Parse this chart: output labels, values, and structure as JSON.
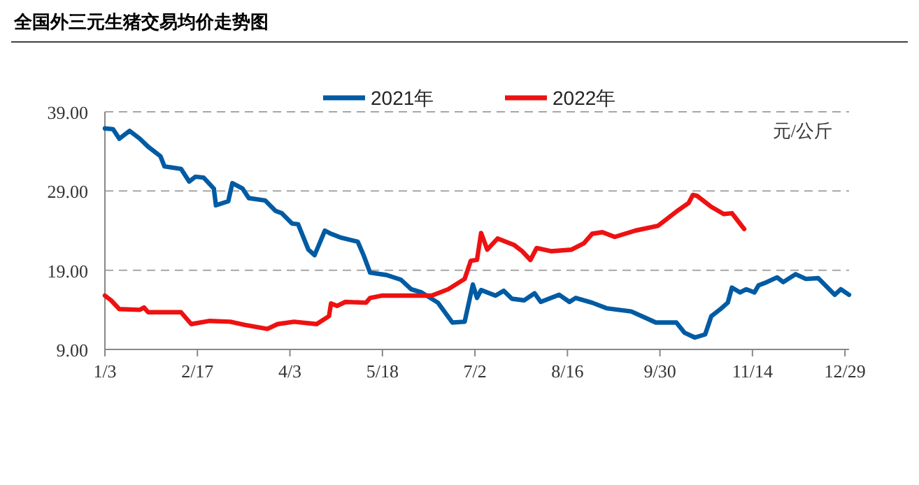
{
  "chart_data": {
    "type": "line",
    "title": "全国外三元生猪交易均价走势图",
    "annotations": [
      "元/公斤"
    ],
    "xlim": [
      "--01-03",
      "--12-31"
    ],
    "xticks": [
      {
        "value": "--01-03",
        "label": "1/3"
      },
      {
        "value": "--02-17",
        "label": "2/17"
      },
      {
        "value": "--04-03",
        "label": "4/3"
      },
      {
        "value": "--05-18",
        "label": "5/18"
      },
      {
        "value": "--07-02",
        "label": "7/2"
      },
      {
        "value": "--08-16",
        "label": "8/16"
      },
      {
        "value": "--09-30",
        "label": "9/30"
      },
      {
        "value": "--11-14",
        "label": "11/14"
      },
      {
        "value": "--12-29",
        "label": "12/29"
      }
    ],
    "ylim": [
      9,
      39
    ],
    "yticks": [
      {
        "value": 9,
        "label": "9.00"
      },
      {
        "value": 19,
        "label": "19.00"
      },
      {
        "value": 29,
        "label": "29.00"
      },
      {
        "value": 39,
        "label": "39.00"
      }
    ],
    "grid": "y",
    "legend": "top",
    "marker": "none",
    "line_style": "solid",
    "series": [
      {
        "name": "2021年",
        "color": "#005ba3",
        "x": [
          "--01-03",
          "--01-07",
          "--01-10",
          "--01-15",
          "--01-20",
          "--01-24",
          "--01-30",
          "--02-01",
          "--02-09",
          "--02-13",
          "--02-16",
          "--02-20",
          "--02-25",
          "--02-26",
          "--03-04",
          "--03-06",
          "--03-11",
          "--03-14",
          "--03-22",
          "--03-27",
          "--03-30",
          "--04-04",
          "--04-07",
          "--04-12",
          "--04-15",
          "--04-20",
          "--04-23",
          "--04-28",
          "--05-06",
          "--05-09",
          "--05-12",
          "--05-20",
          "--05-27",
          "--06-01",
          "--06-06",
          "--06-14",
          "--06-21",
          "--06-27",
          "--07-01",
          "--07-03",
          "--07-05",
          "--07-12",
          "--07-16",
          "--07-20",
          "--07-26",
          "--07-31",
          "--08-03",
          "--08-12",
          "--08-17",
          "--08-20",
          "--08-28",
          "--09-04",
          "--09-16",
          "--09-22",
          "--09-28",
          "--10-08",
          "--10-12",
          "--10-17",
          "--10-22",
          "--10-25",
          "--10-29",
          "--11-02",
          "--11-04",
          "--11-08",
          "--11-11",
          "--11-15",
          "--11-17",
          "--11-21",
          "--11-26",
          "--11-29",
          "--12-05",
          "--12-10",
          "--12-16",
          "--12-24",
          "--12-27",
          "--12-31"
        ],
        "values": [
          36.9,
          36.8,
          35.6,
          36.6,
          35.6,
          34.6,
          33.4,
          32.1,
          31.8,
          30.2,
          30.8,
          30.7,
          29.3,
          27.2,
          27.7,
          30.0,
          29.3,
          28.1,
          27.8,
          26.5,
          26.2,
          24.9,
          24.8,
          21.6,
          20.9,
          24.0,
          23.6,
          23.1,
          22.6,
          20.8,
          18.7,
          18.4,
          17.8,
          16.6,
          16.2,
          14.9,
          12.4,
          12.5,
          17.2,
          15.5,
          16.5,
          15.8,
          16.4,
          15.4,
          15.2,
          16.1,
          15.0,
          15.9,
          15.0,
          15.5,
          14.9,
          14.2,
          13.8,
          13.1,
          12.4,
          12.4,
          11.1,
          10.5,
          10.9,
          13.2,
          14.0,
          14.9,
          16.8,
          16.2,
          16.6,
          16.2,
          17.1,
          17.5,
          18.1,
          17.5,
          18.5,
          17.9,
          18.0,
          15.9,
          16.6,
          15.9
        ]
      },
      {
        "name": "2022年",
        "color": "#ee1111",
        "x": [
          "--01-03",
          "--01-06",
          "--01-10",
          "--01-20",
          "--01-22",
          "--01-24",
          "--02-09",
          "--02-14",
          "--02-23",
          "--03-05",
          "--03-12",
          "--03-23",
          "--03-28",
          "--04-05",
          "--04-16",
          "--04-22",
          "--04-23",
          "--04-26",
          "--04-30",
          "--05-10",
          "--05-12",
          "--05-18",
          "--05-29",
          "--06-11",
          "--06-19",
          "--06-27",
          "--06-30",
          "--07-03",
          "--07-05",
          "--07-08",
          "--07-13",
          "--07-21",
          "--07-25",
          "--07-29",
          "--08-01",
          "--08-08",
          "--08-18",
          "--08-24",
          "--08-28",
          "--09-02",
          "--09-08",
          "--09-18",
          "--09-29",
          "--10-09",
          "--10-14",
          "--10-16",
          "--10-18",
          "--10-25",
          "--10-31",
          "--11-04",
          "--11-10"
        ],
        "values": [
          15.8,
          15.2,
          14.1,
          14.0,
          14.3,
          13.7,
          13.7,
          12.2,
          12.6,
          12.5,
          12.1,
          11.6,
          12.2,
          12.5,
          12.2,
          13.2,
          14.8,
          14.5,
          15.0,
          14.9,
          15.5,
          15.8,
          15.8,
          15.8,
          16.6,
          17.9,
          20.2,
          20.3,
          23.7,
          21.6,
          23.0,
          22.2,
          21.4,
          20.3,
          21.8,
          21.4,
          21.6,
          22.4,
          23.6,
          23.8,
          23.2,
          24.0,
          24.6,
          26.6,
          27.5,
          28.5,
          28.4,
          27.0,
          26.1,
          26.2,
          24.2
        ]
      }
    ]
  }
}
